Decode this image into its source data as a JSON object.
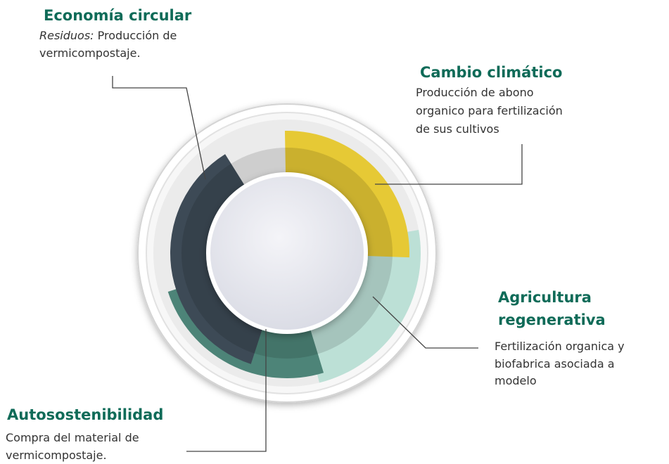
{
  "sections": [
    {
      "title": "Economía circular",
      "label": "Residuos:",
      "lines": [
        "Producción de",
        "vermicompostaje."
      ]
    },
    {
      "title": "Cambio climático",
      "lines": [
        "Producción de abono",
        "organico para fertilización",
        "de sus cultivos"
      ]
    },
    {
      "title": [
        "Agricultura",
        "regenerativa"
      ],
      "lines": [
        "Fertilización organica y",
        "biofabrica asociada a",
        "modelo"
      ]
    },
    {
      "title": "Autosostenibilidad",
      "lines": [
        "Compra del material de",
        "vermicompostaje."
      ]
    }
  ]
}
